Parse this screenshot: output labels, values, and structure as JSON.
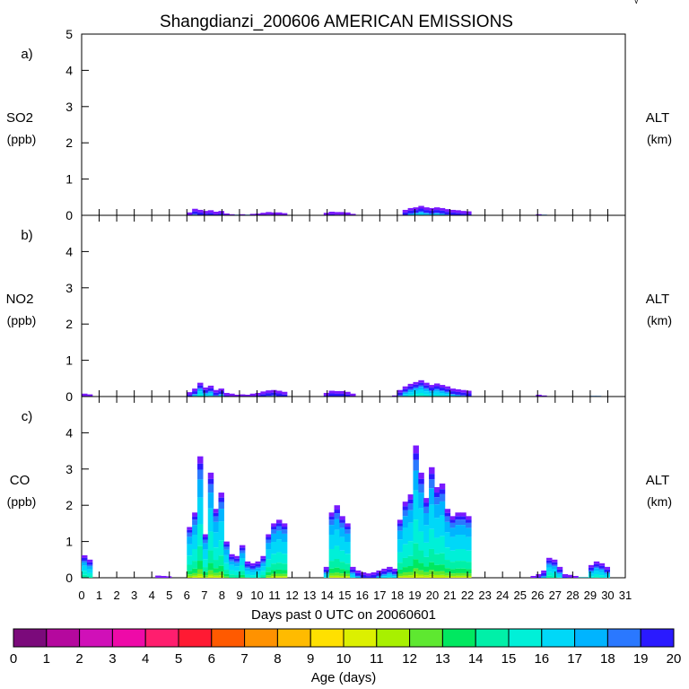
{
  "title": "Shangdianzi_200606 AMERICAN EMISSIONS",
  "corner_mark": "√",
  "x_axis": {
    "label": "Days past 0 UTC on 20060601",
    "min": 0,
    "max": 31,
    "ticks": [
      "0",
      "1",
      "2",
      "3",
      "4",
      "5",
      "6",
      "7",
      "8",
      "9",
      "10",
      "11",
      "12",
      "13",
      "14",
      "15",
      "16",
      "17",
      "18",
      "19",
      "20",
      "21",
      "22",
      "23",
      "24",
      "25",
      "26",
      "27",
      "28",
      "29",
      "30",
      "31"
    ]
  },
  "colorbar": {
    "label": "Age (days)",
    "ticks": [
      "0",
      "1",
      "2",
      "3",
      "4",
      "5",
      "6",
      "7",
      "8",
      "9",
      "10",
      "11",
      "12",
      "13",
      "14",
      "15",
      "16",
      "17",
      "18",
      "19",
      "20"
    ],
    "colors": [
      "#7b0a7b",
      "#b5089e",
      "#d010b8",
      "#ee0aa8",
      "#ff1e6e",
      "#ff1a33",
      "#ff5a00",
      "#ff9200",
      "#ffbb00",
      "#ffe000",
      "#dcf000",
      "#a8f000",
      "#5ee830",
      "#00e860",
      "#00f0a8",
      "#00f0d8",
      "#00d8f8",
      "#00b4ff",
      "#2a78ff",
      "#2a1aff",
      "#7a1aff"
    ]
  },
  "chart_data": [
    {
      "type": "area",
      "panel": "a)",
      "ylabel": "SO2",
      "yunit": "(ppb)",
      "right_label": "ALT",
      "right_unit": "(km)",
      "ylim": [
        0,
        5
      ],
      "yticks": [
        "0",
        "1",
        "2",
        "3",
        "4",
        "5"
      ],
      "x": [
        6.0,
        6.3,
        6.6,
        6.9,
        7.2,
        7.5,
        7.8,
        8.1,
        8.4,
        8.7,
        9.0,
        9.3,
        9.6,
        9.9,
        10.2,
        10.5,
        10.8,
        11.1,
        11.4,
        13.8,
        14.1,
        14.4,
        14.7,
        15.0,
        15.3,
        18.3,
        18.6,
        18.9,
        19.2,
        19.5,
        19.8,
        20.1,
        20.4,
        20.7,
        21.0,
        21.3,
        21.6,
        21.9,
        25.9,
        26.2
      ],
      "values": [
        0.08,
        0.18,
        0.15,
        0.12,
        0.14,
        0.1,
        0.12,
        0.05,
        0.03,
        0.02,
        0.03,
        0.02,
        0.04,
        0.05,
        0.07,
        0.09,
        0.08,
        0.08,
        0.06,
        0.07,
        0.1,
        0.09,
        0.09,
        0.08,
        0.04,
        0.15,
        0.2,
        0.22,
        0.26,
        0.22,
        0.2,
        0.22,
        0.2,
        0.17,
        0.15,
        0.14,
        0.12,
        0.11,
        0.03,
        0.02
      ]
    },
    {
      "type": "area",
      "panel": "b)",
      "ylabel": "NO2",
      "yunit": "(ppb)",
      "right_label": "ALT",
      "right_unit": "(km)",
      "ylim": [
        0,
        5
      ],
      "yticks": [
        "0",
        "1",
        "2",
        "3",
        "4"
      ],
      "x": [
        0.0,
        0.3,
        6.0,
        6.3,
        6.6,
        6.9,
        7.2,
        7.5,
        7.8,
        8.1,
        8.4,
        8.7,
        9.0,
        9.3,
        9.6,
        9.9,
        10.2,
        10.5,
        10.8,
        11.1,
        11.4,
        13.8,
        14.1,
        14.4,
        14.7,
        15.0,
        15.3,
        17.7,
        18.0,
        18.3,
        18.6,
        18.9,
        19.2,
        19.5,
        19.8,
        20.1,
        20.4,
        20.7,
        21.0,
        21.3,
        21.6,
        21.9,
        25.9,
        26.2,
        29.0,
        29.3
      ],
      "values": [
        0.08,
        0.06,
        0.12,
        0.22,
        0.38,
        0.25,
        0.3,
        0.18,
        0.22,
        0.1,
        0.08,
        0.05,
        0.06,
        0.05,
        0.08,
        0.1,
        0.14,
        0.17,
        0.18,
        0.16,
        0.13,
        0.1,
        0.16,
        0.15,
        0.15,
        0.13,
        0.08,
        0.03,
        0.18,
        0.28,
        0.35,
        0.4,
        0.45,
        0.38,
        0.32,
        0.36,
        0.32,
        0.28,
        0.22,
        0.2,
        0.18,
        0.16,
        0.05,
        0.03,
        0.02,
        0.02
      ]
    },
    {
      "type": "area",
      "panel": "c)",
      "ylabel": "CO",
      "yunit": "(ppb)",
      "right_label": "ALT",
      "right_unit": "(km)",
      "ylim": [
        0,
        5
      ],
      "yticks": [
        "0",
        "1",
        "2",
        "3",
        "4"
      ],
      "x": [
        0.0,
        0.3,
        4.2,
        4.5,
        4.8,
        6.0,
        6.3,
        6.6,
        6.9,
        7.2,
        7.5,
        7.8,
        8.1,
        8.4,
        8.7,
        9.0,
        9.3,
        9.6,
        9.9,
        10.2,
        10.5,
        10.8,
        11.1,
        11.4,
        13.8,
        14.1,
        14.4,
        14.7,
        15.0,
        15.3,
        15.6,
        15.9,
        16.2,
        16.5,
        16.8,
        17.1,
        17.4,
        17.7,
        18.0,
        18.3,
        18.6,
        18.9,
        19.2,
        19.5,
        19.8,
        20.1,
        20.4,
        20.7,
        21.0,
        21.3,
        21.6,
        21.9,
        25.6,
        25.9,
        26.2,
        26.5,
        26.8,
        27.1,
        27.4,
        27.7,
        28.0,
        28.3,
        28.6,
        28.9,
        29.2,
        29.5,
        29.8
      ],
      "values": [
        0.62,
        0.5,
        0.06,
        0.05,
        0.04,
        1.4,
        1.8,
        3.35,
        1.2,
        2.9,
        1.9,
        2.35,
        1.0,
        0.65,
        0.6,
        0.9,
        0.45,
        0.4,
        0.45,
        0.6,
        1.2,
        1.5,
        1.6,
        1.5,
        0.3,
        1.8,
        2.0,
        1.7,
        1.5,
        0.3,
        0.2,
        0.15,
        0.12,
        0.15,
        0.2,
        0.25,
        0.3,
        0.25,
        1.6,
        2.1,
        2.3,
        3.65,
        2.9,
        2.2,
        3.05,
        2.5,
        2.6,
        1.9,
        1.7,
        1.8,
        1.8,
        1.7,
        0.05,
        0.1,
        0.2,
        0.55,
        0.5,
        0.3,
        0.1,
        0.08,
        0.05,
        0.02,
        0.02,
        0.35,
        0.45,
        0.4,
        0.3
      ]
    }
  ]
}
